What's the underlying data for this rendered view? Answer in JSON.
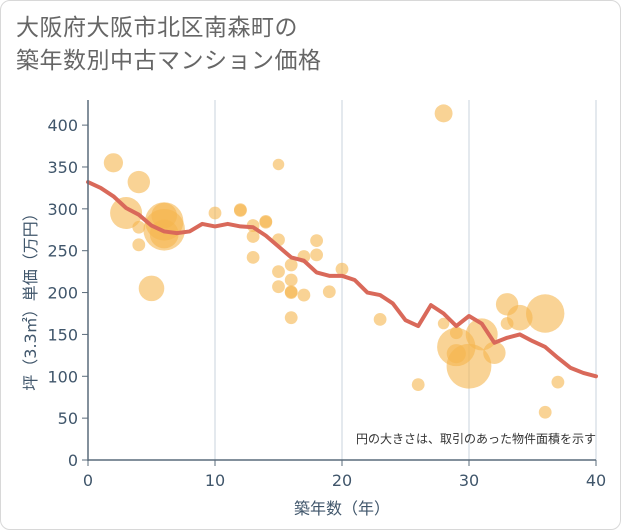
{
  "chart_data": {
    "type": "scatter",
    "title_lines": [
      "大阪府大阪市北区南森町の",
      "築年数別中古マンション価格"
    ],
    "xlabel": "築年数（年）",
    "ylabel": "坪（3.3㎡）単価（万円）",
    "xlim": [
      0,
      40
    ],
    "ylim": [
      0,
      430
    ],
    "xticks": [
      0,
      10,
      20,
      30,
      40
    ],
    "yticks": [
      0,
      50,
      100,
      150,
      200,
      250,
      300,
      350,
      400
    ],
    "grid": "vertical",
    "note": "円の大きさは、取引のあった物件面積を示す",
    "colors": {
      "bubble": "#f5b54f",
      "trend": "#d9695a"
    },
    "bubbles": [
      {
        "x": 2,
        "y": 355,
        "s": 3
      },
      {
        "x": 4,
        "y": 332,
        "s": 3.5
      },
      {
        "x": 3,
        "y": 295,
        "s": 5
      },
      {
        "x": 4,
        "y": 278,
        "s": 2
      },
      {
        "x": 4,
        "y": 257,
        "s": 2
      },
      {
        "x": 5,
        "y": 205,
        "s": 4
      },
      {
        "x": 6,
        "y": 292,
        "s": 4
      },
      {
        "x": 6,
        "y": 285,
        "s": 6
      },
      {
        "x": 6,
        "y": 275,
        "s": 6.5
      },
      {
        "x": 6,
        "y": 270,
        "s": 4.5
      },
      {
        "x": 10,
        "y": 295,
        "s": 2
      },
      {
        "x": 12,
        "y": 299,
        "s": 2
      },
      {
        "x": 12,
        "y": 298,
        "s": 2
      },
      {
        "x": 13,
        "y": 280,
        "s": 2
      },
      {
        "x": 13,
        "y": 267,
        "s": 2
      },
      {
        "x": 13,
        "y": 242,
        "s": 2
      },
      {
        "x": 14,
        "y": 285,
        "s": 2
      },
      {
        "x": 14,
        "y": 284,
        "s": 2
      },
      {
        "x": 15,
        "y": 353,
        "s": 1.8
      },
      {
        "x": 15,
        "y": 263,
        "s": 2
      },
      {
        "x": 15,
        "y": 225,
        "s": 2
      },
      {
        "x": 15,
        "y": 207,
        "s": 2
      },
      {
        "x": 16,
        "y": 233,
        "s": 2
      },
      {
        "x": 16,
        "y": 215,
        "s": 2
      },
      {
        "x": 16,
        "y": 201,
        "s": 2
      },
      {
        "x": 16,
        "y": 200,
        "s": 2
      },
      {
        "x": 16,
        "y": 170,
        "s": 2
      },
      {
        "x": 17,
        "y": 243,
        "s": 2
      },
      {
        "x": 17,
        "y": 197,
        "s": 2
      },
      {
        "x": 18,
        "y": 262,
        "s": 2
      },
      {
        "x": 18,
        "y": 245,
        "s": 2
      },
      {
        "x": 19,
        "y": 201,
        "s": 2
      },
      {
        "x": 20,
        "y": 228,
        "s": 2
      },
      {
        "x": 23,
        "y": 168,
        "s": 2
      },
      {
        "x": 26,
        "y": 90,
        "s": 2
      },
      {
        "x": 28,
        "y": 414,
        "s": 2.8
      },
      {
        "x": 28,
        "y": 163,
        "s": 1.8
      },
      {
        "x": 29,
        "y": 152,
        "s": 2
      },
      {
        "x": 29,
        "y": 127,
        "s": 3
      },
      {
        "x": 29,
        "y": 135,
        "s": 6
      },
      {
        "x": 30,
        "y": 112,
        "s": 7
      },
      {
        "x": 31,
        "y": 150,
        "s": 5
      },
      {
        "x": 32,
        "y": 128,
        "s": 3.5
      },
      {
        "x": 33,
        "y": 186,
        "s": 3.5
      },
      {
        "x": 33,
        "y": 163,
        "s": 2
      },
      {
        "x": 34,
        "y": 170,
        "s": 4
      },
      {
        "x": 36,
        "y": 175,
        "s": 6
      },
      {
        "x": 36,
        "y": 57,
        "s": 2
      },
      {
        "x": 37,
        "y": 93,
        "s": 2
      }
    ],
    "trend": {
      "x": [
        0,
        1,
        2,
        3,
        4,
        5,
        6,
        7,
        8,
        9,
        10,
        11,
        12,
        13,
        14,
        15,
        16,
        17,
        18,
        19,
        20,
        21,
        22,
        23,
        24,
        25,
        26,
        27,
        28,
        29,
        30,
        31,
        32,
        33,
        34,
        35,
        36,
        37,
        38,
        39,
        40
      ],
      "y": [
        332,
        325,
        315,
        301,
        293,
        280,
        273,
        271,
        273,
        282,
        279,
        282,
        279,
        278,
        268,
        255,
        242,
        238,
        224,
        220,
        220,
        215,
        200,
        197,
        187,
        167,
        160,
        185,
        175,
        160,
        172,
        163,
        140,
        146,
        150,
        142,
        135,
        122,
        110,
        104,
        100
      ]
    }
  }
}
